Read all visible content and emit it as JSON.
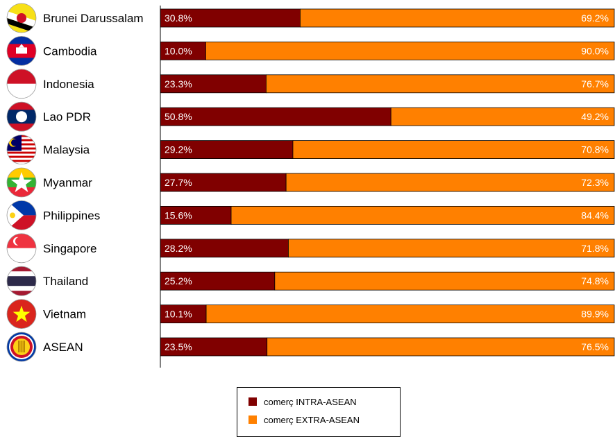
{
  "chart_data": {
    "type": "bar",
    "orientation": "horizontal",
    "stacked": true,
    "percent": true,
    "categories": [
      "Brunei Darussalam",
      "Cambodia",
      "Indonesia",
      "Lao PDR",
      "Malaysia",
      "Myanmar",
      "Philippines",
      "Singapore",
      "Thailand",
      "Vietnam",
      "ASEAN"
    ],
    "series": [
      {
        "name": "comerç INTRA-ASEAN",
        "color": "#800000",
        "values": [
          30.8,
          10.0,
          23.3,
          50.8,
          29.2,
          27.7,
          15.6,
          28.2,
          25.2,
          10.1,
          23.5
        ],
        "labels": [
          "30.8%",
          "10.0%",
          "23.3%",
          "50.8%",
          "29.2%",
          "27.7%",
          "15.6%",
          "28.2%",
          "25.2%",
          "10.1%",
          "23.5%"
        ]
      },
      {
        "name": "comerç EXTRA-ASEAN",
        "color": "#ff8000",
        "values": [
          69.2,
          90.0,
          76.7,
          49.2,
          70.8,
          72.3,
          84.4,
          71.8,
          74.8,
          89.9,
          76.5
        ],
        "labels": [
          "69.2%",
          "90.0%",
          "76.7%",
          "49.2%",
          "70.8%",
          "72.3%",
          "84.4%",
          "71.8%",
          "74.8%",
          "89.9%",
          "76.5%"
        ]
      }
    ],
    "xlim": [
      0,
      100
    ],
    "grid": false,
    "legend_position": "bottom-center",
    "flag_icons": [
      "brunei-flag-icon",
      "cambodia-flag-icon",
      "indonesia-flag-icon",
      "laos-flag-icon",
      "malaysia-flag-icon",
      "myanmar-flag-icon",
      "philippines-flag-icon",
      "singapore-flag-icon",
      "thailand-flag-icon",
      "vietnam-flag-icon",
      "asean-emblem-icon"
    ]
  }
}
